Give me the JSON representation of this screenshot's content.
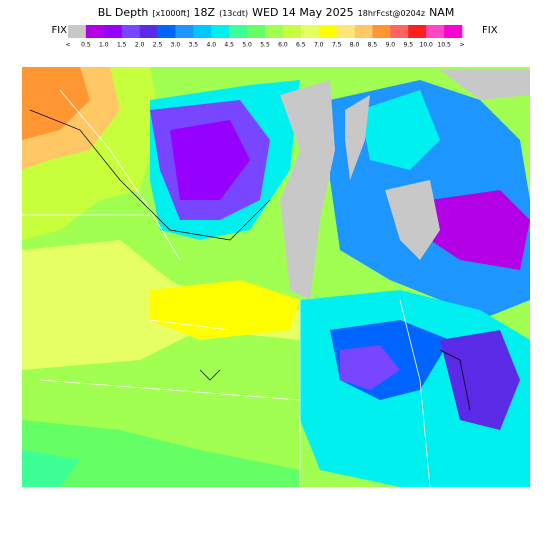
{
  "header": {
    "title_parts": [
      "BL Depth",
      "[x1000ft]",
      "18Z",
      "(13cdt)",
      "WED 14 May 2025",
      "18hrFcst@0204z",
      "NAM"
    ]
  },
  "legend": {
    "left_label": "FIX",
    "right_label": "FIX",
    "colors": [
      "#c8c8c8",
      "#b400e6",
      "#9600ff",
      "#7846ff",
      "#5a2ae6",
      "#0064ff",
      "#1e96ff",
      "#00c8ff",
      "#00f0f0",
      "#3cff96",
      "#64ff64",
      "#a0ff50",
      "#c8ff3c",
      "#e6ff64",
      "#ffff00",
      "#ffe678",
      "#ffc864",
      "#ff9632",
      "#ff6464",
      "#ff1e1e",
      "#ff46c8",
      "#ff00d2"
    ],
    "labels": [
      "<",
      "0.5",
      "1.0",
      "1.5",
      "2.0",
      "2.5",
      "3.0",
      "3.5",
      "4.0",
      "4.5",
      "5.0",
      "5.5",
      "6.0",
      "6.5",
      "7.0",
      "7.5",
      "8.0",
      "8.5",
      "9.0",
      "9.5",
      "10.0",
      "10.5",
      ">"
    ]
  }
}
